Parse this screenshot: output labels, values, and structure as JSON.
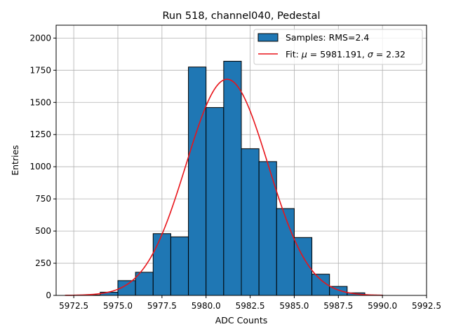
{
  "chart_data": {
    "type": "bar",
    "title": "Run 518, channel040, Pedestal",
    "xlabel": "ADC Counts",
    "ylabel": "Entries",
    "xlim": [
      5971.5,
      5992.5
    ],
    "ylim": [
      0,
      2100
    ],
    "xticks": [
      5972.5,
      5975.0,
      5977.5,
      5980.0,
      5982.5,
      5985.0,
      5987.5,
      5990.0,
      5992.5
    ],
    "xtick_labels": [
      "5972.5",
      "5975.0",
      "5977.5",
      "5980.0",
      "5982.5",
      "5985.0",
      "5987.5",
      "5990.0",
      "5992.5"
    ],
    "yticks": [
      0,
      250,
      500,
      750,
      1000,
      1250,
      1500,
      1750,
      2000
    ],
    "ytick_labels": [
      "0",
      "250",
      "500",
      "750",
      "1000",
      "1250",
      "1500",
      "1750",
      "2000"
    ],
    "grid": true,
    "legend_position": "top-right",
    "histogram": {
      "name": "Samples: RMS=2.4",
      "color": "#1f77b4",
      "edge_color": "#000000",
      "bin_edges": [
        5972.0,
        5973.0,
        5974.0,
        5975.0,
        5976.0,
        5977.0,
        5978.0,
        5979.0,
        5980.0,
        5981.0,
        5982.0,
        5983.0,
        5984.0,
        5985.0,
        5986.0,
        5987.0,
        5988.0,
        5989.0,
        5990.0,
        5991.0,
        5992.0
      ],
      "counts": [
        0,
        3,
        25,
        115,
        180,
        480,
        455,
        1775,
        1460,
        1820,
        1140,
        1040,
        675,
        450,
        165,
        70,
        20,
        3,
        0,
        0
      ]
    },
    "fit": {
      "name_prefix": "Fit: ",
      "name_mu": "μ",
      "name_sigma": "σ",
      "mu_text": " = 5981.191, ",
      "sigma_text": " = 2.32",
      "color": "#e8141a",
      "mu": 5981.191,
      "sigma": 2.32,
      "amplitude": 1680,
      "x_range": [
        5972.0,
        5990.0
      ]
    }
  }
}
